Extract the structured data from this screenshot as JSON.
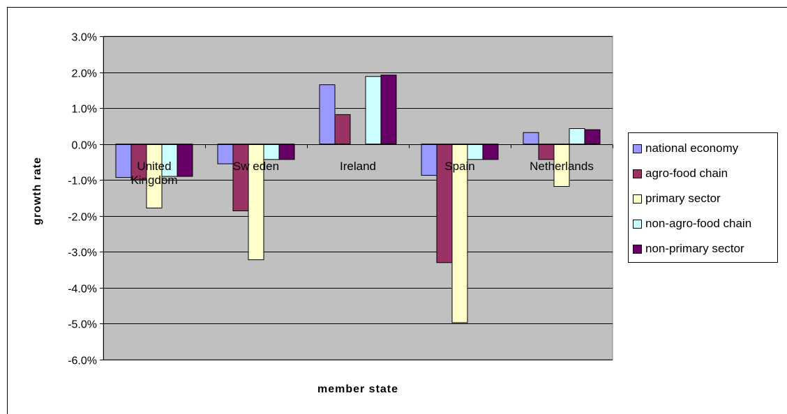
{
  "chart_data": {
    "type": "bar",
    "categories": [
      "United Kingdom",
      "Sweden",
      "Ireland",
      "Spain",
      "Netherlands"
    ],
    "category_lines": [
      [
        "United",
        "Kingdom"
      ],
      [
        "Sw eden"
      ],
      [
        "Ireland"
      ],
      [
        "Spain"
      ],
      [
        "Netherlands"
      ]
    ],
    "series": [
      {
        "name": "national economy",
        "color": "#9999FF",
        "values": [
          -0.0093,
          -0.0055,
          0.0165,
          -0.0087,
          0.0032
        ]
      },
      {
        "name": "agro-food chain",
        "color": "#993366",
        "values": [
          -0.01,
          -0.0186,
          0.0082,
          -0.033,
          -0.0043
        ]
      },
      {
        "name": "primary sector",
        "color": "#FFFFCC",
        "values": [
          -0.0178,
          -0.0322,
          0.0,
          -0.0497,
          -0.0118
        ]
      },
      {
        "name": "non-agro-food chain",
        "color": "#CCFFFF",
        "values": [
          -0.009,
          -0.0043,
          0.0188,
          -0.0043,
          0.0043
        ]
      },
      {
        "name": "non-primary sector",
        "color": "#660066",
        "values": [
          -0.009,
          -0.0043,
          0.0192,
          -0.0043,
          0.004
        ]
      }
    ],
    "ylim": [
      -0.06,
      0.03
    ],
    "yticks": [
      "3.0%",
      "2.0%",
      "1.0%",
      "0.0%",
      "-1.0%",
      "-2.0%",
      "-3.0%",
      "-4.0%",
      "-5.0%",
      "-6.0%"
    ],
    "ytick_values": [
      0.03,
      0.02,
      0.01,
      0.0,
      -0.01,
      -0.02,
      -0.03,
      -0.04,
      -0.05,
      -0.06
    ],
    "xlabel": "member state",
    "ylabel": "growth rate",
    "plot_background": "#C0C0C0",
    "grid": true,
    "legend_position": "right"
  }
}
